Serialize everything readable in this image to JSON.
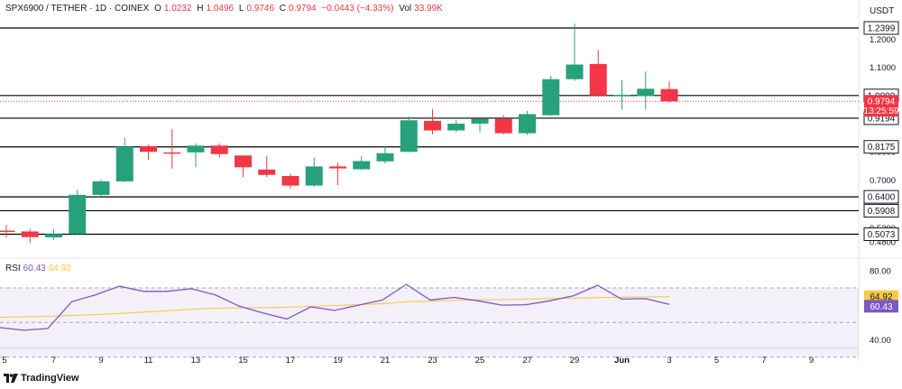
{
  "header": {
    "symbol": "SPX6900 / TETHER · 1D · COINEX",
    "open_label": "O",
    "open": "1.0232",
    "high_label": "H",
    "high": "1.0496",
    "low_label": "L",
    "low": "0.9746",
    "close_label": "C",
    "close": "0.9794",
    "change": "−0.0443 (−4.33%)",
    "vol_label": "Vol",
    "vol": "33.99K"
  },
  "currency": "USDT",
  "brand": "TradingView",
  "countdown": "13:25:59",
  "colors": {
    "up": "#26a17b",
    "down": "#f23645",
    "rsi": "#7e57c2",
    "rsi_ma": "#f7c948",
    "level": "#000000"
  },
  "chart_data": [
    {
      "type": "candlestick",
      "title": "SPX6900 / TETHER · 1D · COINEX",
      "x_ticks": [
        "5",
        "7",
        "9",
        "11",
        "13",
        "15",
        "17",
        "19",
        "21",
        "23",
        "25",
        "27",
        "29",
        "Jun",
        "3",
        "5",
        "7",
        "9"
      ],
      "y_ticks": [
        "1.2000",
        "1.1000",
        "0.8000",
        "0.7000",
        "0.5300",
        "0.4800"
      ],
      "ylim": [
        0.455,
        1.34
      ],
      "candles": [
        {
          "open": 0.52,
          "high": 0.54,
          "low": 0.495,
          "close": 0.517
        },
        {
          "open": 0.517,
          "high": 0.527,
          "low": 0.476,
          "close": 0.497
        },
        {
          "open": 0.496,
          "high": 0.525,
          "low": 0.488,
          "close": 0.508
        },
        {
          "open": 0.508,
          "high": 0.665,
          "low": 0.505,
          "close": 0.647
        },
        {
          "open": 0.647,
          "high": 0.7,
          "low": 0.64,
          "close": 0.695
        },
        {
          "open": 0.695,
          "high": 0.85,
          "low": 0.692,
          "close": 0.818
        },
        {
          "open": 0.82,
          "high": 0.825,
          "low": 0.772,
          "close": 0.8
        },
        {
          "open": 0.798,
          "high": 0.88,
          "low": 0.74,
          "close": 0.796
        },
        {
          "open": 0.798,
          "high": 0.83,
          "low": 0.745,
          "close": 0.822
        },
        {
          "open": 0.822,
          "high": 0.83,
          "low": 0.78,
          "close": 0.792
        },
        {
          "open": 0.787,
          "high": 0.787,
          "low": 0.71,
          "close": 0.745
        },
        {
          "open": 0.737,
          "high": 0.785,
          "low": 0.71,
          "close": 0.718
        },
        {
          "open": 0.714,
          "high": 0.722,
          "low": 0.67,
          "close": 0.68
        },
        {
          "open": 0.68,
          "high": 0.78,
          "low": 0.676,
          "close": 0.748
        },
        {
          "open": 0.748,
          "high": 0.76,
          "low": 0.682,
          "close": 0.741
        },
        {
          "open": 0.738,
          "high": 0.785,
          "low": 0.735,
          "close": 0.767
        },
        {
          "open": 0.766,
          "high": 0.82,
          "low": 0.758,
          "close": 0.795
        },
        {
          "open": 0.8,
          "high": 0.925,
          "low": 0.798,
          "close": 0.912
        },
        {
          "open": 0.91,
          "high": 0.952,
          "low": 0.862,
          "close": 0.876
        },
        {
          "open": 0.876,
          "high": 0.912,
          "low": 0.87,
          "close": 0.9
        },
        {
          "open": 0.9,
          "high": 0.918,
          "low": 0.87,
          "close": 0.917
        },
        {
          "open": 0.917,
          "high": 0.93,
          "low": 0.862,
          "close": 0.866
        },
        {
          "open": 0.866,
          "high": 0.945,
          "low": 0.86,
          "close": 0.934
        },
        {
          "open": 0.93,
          "high": 1.07,
          "low": 0.928,
          "close": 1.058
        },
        {
          "open": 1.058,
          "high": 1.255,
          "low": 1.052,
          "close": 1.11
        },
        {
          "open": 1.112,
          "high": 1.162,
          "low": 0.995,
          "close": 1.0
        },
        {
          "open": 0.998,
          "high": 1.055,
          "low": 0.95,
          "close": 1.002
        },
        {
          "open": 0.998,
          "high": 1.085,
          "low": 0.95,
          "close": 1.024
        },
        {
          "open": 1.023,
          "high": 1.05,
          "low": 0.975,
          "close": 0.979
        }
      ],
      "levels": [
        {
          "value": 1.2399,
          "label": "1.2399"
        },
        {
          "value": 1.0,
          "label": "1.0000"
        },
        {
          "value": 0.9194,
          "label": "0.9194"
        },
        {
          "value": 0.8175,
          "label": "0.8175"
        },
        {
          "value": 0.64,
          "label": "0.6400"
        },
        {
          "value": 0.5908,
          "label": "0.5908"
        },
        {
          "value": 0.5073,
          "label": "0.5073"
        }
      ],
      "last_price": {
        "value": 0.9794,
        "label": "0.9794"
      }
    },
    {
      "type": "line",
      "title": "RSI",
      "ylim": [
        35,
        82
      ],
      "y_ticks": [
        "80.00",
        "40.00"
      ],
      "bands": [
        70,
        50,
        30
      ],
      "series": [
        {
          "name": "RSI",
          "value_label": "60.43",
          "values": [
            47,
            45.5,
            46.5,
            62,
            66,
            71,
            68,
            68,
            69.5,
            66,
            59.5,
            55.5,
            52,
            59,
            57,
            60,
            63,
            72,
            63,
            64.5,
            62.5,
            60,
            60.3,
            62.5,
            65.5,
            71.5,
            63.5,
            63.8,
            60.43
          ]
        },
        {
          "name": "RSI MA",
          "value_label": "64.92",
          "values": [
            53,
            53.3,
            53.6,
            54,
            54.5,
            55.2,
            56,
            56.8,
            57.6,
            58.2,
            58.5,
            58.6,
            58.8,
            59.3,
            59.8,
            60.3,
            60.9,
            62,
            62.3,
            62.8,
            63.1,
            63.2,
            63.5,
            63.8,
            64.1,
            64.4,
            64.6,
            64.8,
            64.92
          ]
        }
      ]
    }
  ]
}
